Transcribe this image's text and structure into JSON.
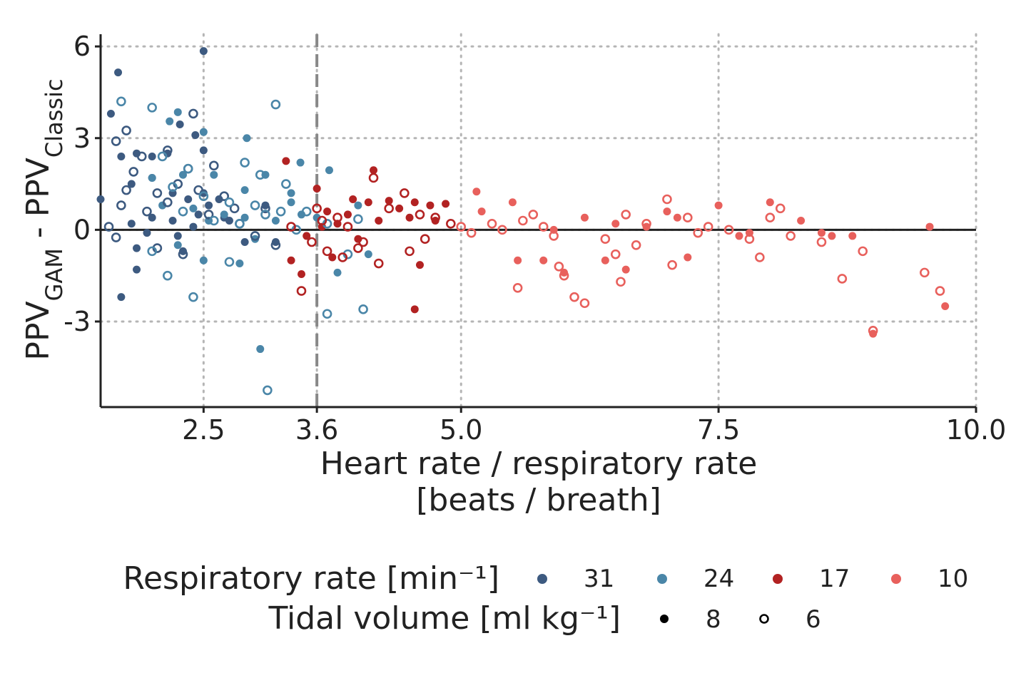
{
  "chart_data": {
    "type": "scatter",
    "xlabel_line1": "Heart rate / respiratory rate",
    "xlabel_line2": "[beats / breath]",
    "ylabel": {
      "part1": "PPV",
      "sub1": "GAM",
      "part2": " - PPV",
      "sub2": "Classic"
    },
    "xlim": [
      1.5,
      10.0
    ],
    "ylim": [
      -5.8,
      6.4
    ],
    "xticks": [
      {
        "value": 2.5,
        "label": "2.5"
      },
      {
        "value": 3.6,
        "label": "3.6"
      },
      {
        "value": 5.0,
        "label": "5.0"
      },
      {
        "value": 7.5,
        "label": "7.5"
      },
      {
        "value": 10.0,
        "label": "10.0"
      }
    ],
    "yticks": [
      {
        "value": 6,
        "label": "6"
      },
      {
        "value": 3,
        "label": "3"
      },
      {
        "value": 0,
        "label": "0"
      },
      {
        "value": -3,
        "label": "-3"
      }
    ],
    "grid": "dotted",
    "hline": 0,
    "vline": 3.6,
    "legend": {
      "placement": "bottom",
      "color_title": "Respiratory rate [min⁻¹]",
      "shape_title": "Tidal volume [ml kg⁻¹]",
      "color_entries": [
        {
          "label": "31",
          "color": "#3d5a80"
        },
        {
          "label": "24",
          "color": "#4a86a8"
        },
        {
          "label": "17",
          "color": "#b22222"
        },
        {
          "label": "10",
          "color": "#e8605c"
        }
      ],
      "shape_entries": [
        {
          "label": "8",
          "filled": true
        },
        {
          "label": "6",
          "filled": false
        }
      ]
    },
    "series": [
      {
        "rr": "31",
        "vt": "8",
        "color": "#3d5a80",
        "filled": true,
        "points": [
          [
            1.5,
            1.0
          ],
          [
            1.6,
            3.8
          ],
          [
            1.67,
            5.15
          ],
          [
            2.5,
            5.85
          ],
          [
            2.27,
            3.45
          ],
          [
            2.42,
            3.1
          ],
          [
            1.7,
            2.4
          ],
          [
            1.85,
            2.5
          ],
          [
            2.0,
            2.4
          ],
          [
            2.15,
            2.5
          ],
          [
            2.5,
            2.6
          ],
          [
            1.8,
            1.5
          ],
          [
            2.0,
            1.7
          ],
          [
            2.2,
            1.2
          ],
          [
            2.35,
            1.0
          ],
          [
            2.5,
            1.2
          ],
          [
            2.65,
            1.0
          ],
          [
            1.8,
            0.2
          ],
          [
            2.0,
            0.4
          ],
          [
            2.2,
            0.3
          ],
          [
            2.4,
            0.1
          ],
          [
            2.55,
            0.8
          ],
          [
            2.7,
            0.4
          ],
          [
            2.9,
            -0.4
          ],
          [
            1.85,
            -0.6
          ],
          [
            2.25,
            -0.2
          ],
          [
            1.85,
            -1.3
          ],
          [
            1.7,
            -2.2
          ],
          [
            2.75,
            0.3
          ],
          [
            3.1,
            0.8
          ],
          [
            3.2,
            -0.4
          ],
          [
            2.3,
            -0.7
          ],
          [
            2.45,
            0.5
          ],
          [
            1.95,
            -0.1
          ]
        ]
      },
      {
        "rr": "24",
        "vt": "8",
        "color": "#4a86a8",
        "filled": true,
        "points": [
          [
            2.25,
            3.85
          ],
          [
            2.17,
            3.55
          ],
          [
            2.5,
            3.2
          ],
          [
            2.92,
            3.0
          ],
          [
            3.44,
            2.2
          ],
          [
            3.72,
            1.95
          ],
          [
            2.0,
            1.7
          ],
          [
            2.3,
            1.8
          ],
          [
            2.6,
            1.8
          ],
          [
            2.9,
            1.3
          ],
          [
            3.1,
            1.8
          ],
          [
            3.35,
            1.2
          ],
          [
            2.1,
            0.8
          ],
          [
            2.4,
            0.7
          ],
          [
            2.7,
            0.5
          ],
          [
            2.9,
            0.4
          ],
          [
            3.2,
            0.3
          ],
          [
            3.45,
            0.5
          ],
          [
            3.6,
            0.4
          ],
          [
            4.0,
            0.8
          ],
          [
            2.25,
            -0.5
          ],
          [
            2.5,
            -1.0
          ],
          [
            2.85,
            -1.1
          ],
          [
            3.05,
            -3.9
          ],
          [
            3.8,
            -1.4
          ],
          [
            4.1,
            -0.8
          ],
          [
            3.0,
            -0.3
          ],
          [
            2.55,
            0.3
          ],
          [
            3.35,
            0.9
          ]
        ]
      },
      {
        "rr": "17",
        "vt": "8",
        "color": "#b22222",
        "filled": true,
        "points": [
          [
            3.3,
            2.25
          ],
          [
            4.15,
            1.95
          ],
          [
            3.6,
            1.35
          ],
          [
            3.35,
            -1.0
          ],
          [
            3.45,
            -1.45
          ],
          [
            3.95,
            1.0
          ],
          [
            4.1,
            0.9
          ],
          [
            4.3,
            0.95
          ],
          [
            4.55,
            0.9
          ],
          [
            4.7,
            0.8
          ],
          [
            4.85,
            0.85
          ],
          [
            3.7,
            0.6
          ],
          [
            3.9,
            0.5
          ],
          [
            4.2,
            0.3
          ],
          [
            4.5,
            0.4
          ],
          [
            4.75,
            0.3
          ],
          [
            3.75,
            -0.9
          ],
          [
            4.6,
            -1.15
          ],
          [
            4.55,
            -2.6
          ],
          [
            3.5,
            -0.2
          ],
          [
            3.8,
            0.2
          ],
          [
            4.0,
            -0.3
          ],
          [
            4.4,
            0.7
          ],
          [
            3.65,
            0.1
          ]
        ]
      },
      {
        "rr": "10",
        "vt": "8",
        "color": "#e8605c",
        "filled": true,
        "points": [
          [
            5.15,
            1.25
          ],
          [
            5.2,
            0.6
          ],
          [
            5.5,
            0.9
          ],
          [
            5.8,
            -1.0
          ],
          [
            6.0,
            -1.4
          ],
          [
            6.2,
            0.4
          ],
          [
            6.4,
            -1.0
          ],
          [
            6.6,
            -1.3
          ],
          [
            6.8,
            0.1
          ],
          [
            7.0,
            0.6
          ],
          [
            7.2,
            -0.9
          ],
          [
            7.5,
            0.8
          ],
          [
            7.8,
            -0.1
          ],
          [
            8.0,
            0.9
          ],
          [
            8.3,
            0.3
          ],
          [
            8.5,
            -0.1
          ],
          [
            8.8,
            -0.2
          ],
          [
            9.0,
            -3.4
          ],
          [
            9.55,
            0.1
          ],
          [
            9.7,
            -2.5
          ],
          [
            5.9,
            0.0
          ],
          [
            6.5,
            0.2
          ],
          [
            7.1,
            0.4
          ],
          [
            7.7,
            -0.2
          ],
          [
            8.6,
            -0.2
          ],
          [
            5.55,
            -1.0
          ]
        ]
      },
      {
        "rr": "31",
        "vt": "6",
        "color": "#3d5a80",
        "filled": false,
        "points": [
          [
            1.58,
            0.1
          ],
          [
            1.65,
            -0.25
          ],
          [
            1.7,
            0.8
          ],
          [
            1.75,
            1.3
          ],
          [
            1.82,
            1.9
          ],
          [
            1.9,
            2.4
          ],
          [
            1.95,
            0.6
          ],
          [
            2.05,
            1.2
          ],
          [
            2.15,
            0.9
          ],
          [
            2.25,
            1.5
          ],
          [
            2.35,
            2.0
          ],
          [
            2.45,
            1.3
          ],
          [
            2.55,
            0.5
          ],
          [
            2.6,
            2.1
          ],
          [
            2.7,
            1.1
          ],
          [
            2.8,
            0.7
          ],
          [
            2.85,
            0.2
          ],
          [
            3.0,
            -0.2
          ],
          [
            3.1,
            0.7
          ],
          [
            2.05,
            -0.6
          ],
          [
            2.3,
            -0.8
          ],
          [
            1.65,
            2.9
          ],
          [
            2.15,
            2.6
          ],
          [
            2.4,
            3.8
          ],
          [
            1.75,
            3.25
          ],
          [
            3.2,
            -0.5
          ]
        ]
      },
      {
        "rr": "24",
        "vt": "6",
        "color": "#4a86a8",
        "filled": false,
        "points": [
          [
            1.7,
            4.2
          ],
          [
            2.0,
            4.0
          ],
          [
            3.2,
            4.1
          ],
          [
            2.1,
            2.4
          ],
          [
            2.35,
            2.0
          ],
          [
            2.9,
            2.2
          ],
          [
            3.05,
            1.8
          ],
          [
            3.3,
            1.5
          ],
          [
            2.2,
            1.4
          ],
          [
            2.5,
            1.1
          ],
          [
            2.75,
            0.9
          ],
          [
            3.0,
            0.8
          ],
          [
            3.25,
            0.6
          ],
          [
            2.3,
            0.6
          ],
          [
            2.6,
            0.3
          ],
          [
            2.85,
            0.2
          ],
          [
            3.1,
            0.5
          ],
          [
            3.4,
            0.0
          ],
          [
            3.7,
            0.2
          ],
          [
            4.0,
            0.35
          ],
          [
            2.15,
            -1.5
          ],
          [
            2.4,
            -2.2
          ],
          [
            2.75,
            -1.05
          ],
          [
            3.12,
            -5.25
          ],
          [
            3.7,
            -2.75
          ],
          [
            4.05,
            -2.6
          ],
          [
            2.0,
            -0.7
          ],
          [
            3.9,
            -0.8
          ],
          [
            3.5,
            0.6
          ]
        ]
      },
      {
        "rr": "17",
        "vt": "6",
        "color": "#b22222",
        "filled": false,
        "points": [
          [
            3.45,
            -2.0
          ],
          [
            3.6,
            0.7
          ],
          [
            3.8,
            0.4
          ],
          [
            3.9,
            0.1
          ],
          [
            4.05,
            -0.4
          ],
          [
            4.15,
            1.7
          ],
          [
            4.3,
            0.7
          ],
          [
            4.45,
            1.2
          ],
          [
            4.6,
            0.5
          ],
          [
            4.75,
            0.4
          ],
          [
            4.9,
            0.2
          ],
          [
            3.55,
            -0.4
          ],
          [
            3.7,
            -0.7
          ],
          [
            3.85,
            -0.9
          ],
          [
            4.0,
            -0.6
          ],
          [
            4.2,
            -1.1
          ],
          [
            4.5,
            -0.7
          ],
          [
            4.65,
            -0.3
          ],
          [
            3.65,
            0.3
          ],
          [
            3.35,
            0.1
          ]
        ]
      },
      {
        "rr": "10",
        "vt": "6",
        "color": "#e8605c",
        "filled": false,
        "points": [
          [
            5.0,
            0.1
          ],
          [
            5.1,
            -0.1
          ],
          [
            5.3,
            0.2
          ],
          [
            5.4,
            0.0
          ],
          [
            5.6,
            0.3
          ],
          [
            5.8,
            0.1
          ],
          [
            5.9,
            -0.2
          ],
          [
            6.0,
            -1.5
          ],
          [
            6.2,
            -2.4
          ],
          [
            6.4,
            -0.3
          ],
          [
            6.6,
            0.5
          ],
          [
            6.8,
            0.2
          ],
          [
            7.0,
            1.0
          ],
          [
            7.2,
            0.4
          ],
          [
            7.4,
            0.1
          ],
          [
            7.6,
            0.0
          ],
          [
            7.8,
            -0.3
          ],
          [
            8.0,
            0.4
          ],
          [
            8.2,
            -0.2
          ],
          [
            8.5,
            -0.4
          ],
          [
            8.7,
            -1.6
          ],
          [
            8.9,
            -0.7
          ],
          [
            9.0,
            -3.3
          ],
          [
            9.5,
            -1.4
          ],
          [
            9.65,
            -2.0
          ],
          [
            5.55,
            -1.9
          ],
          [
            5.95,
            -1.2
          ],
          [
            6.5,
            -0.8
          ],
          [
            6.7,
            -0.5
          ],
          [
            7.3,
            -0.1
          ],
          [
            7.9,
            -0.9
          ],
          [
            5.7,
            0.5
          ],
          [
            6.1,
            -2.2
          ],
          [
            6.55,
            -1.7
          ],
          [
            7.05,
            -1.15
          ],
          [
            8.1,
            0.7
          ]
        ]
      }
    ]
  }
}
